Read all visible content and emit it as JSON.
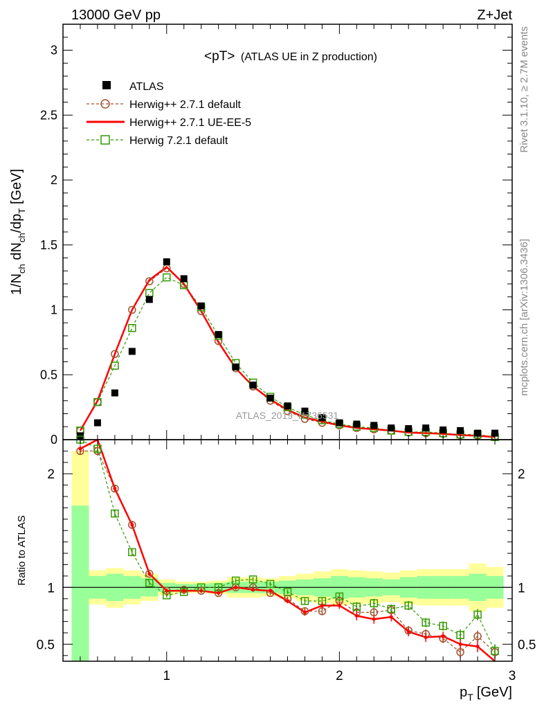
{
  "header": {
    "energy_label": "13000 GeV pp",
    "process_label": "Z+Jet"
  },
  "side_labels": {
    "rivet": "Rivet 3.1.10, ≥ 2.7M events",
    "mcplots": "mcplots.cern.ch [arXiv:1306.3436]"
  },
  "colors": {
    "atlas": "#000000",
    "herwig_default": "#a0522d",
    "herwig_ueee5": "#ff0000",
    "herwig7": "#339900",
    "band_yellow": "#ffff99",
    "band_green": "#99ff99"
  },
  "chart_data": [
    {
      "type": "scatter",
      "title": "<pT>",
      "subtitle": "(ATLAS UE in Z production)",
      "analysis_tag": "ATLAS_2019_I1736531",
      "xlabel_main": "p",
      "xlabel_sub": "T",
      "xlabel_unit": "[GeV]",
      "ylabel": "1/N_ch dN_ch/dp_T [GeV]",
      "xlim": [
        0.4,
        3.0
      ],
      "ylim": [
        0,
        3.2
      ],
      "yticks": [
        0,
        0.5,
        1,
        1.5,
        2,
        2.5,
        3
      ],
      "ytick_labels": [
        "0",
        "0.5",
        "1",
        "1.5",
        "2",
        "2.5",
        "3"
      ],
      "x": [
        0.5,
        0.6,
        0.7,
        0.8,
        0.9,
        1.0,
        1.1,
        1.2,
        1.3,
        1.4,
        1.5,
        1.6,
        1.7,
        1.8,
        1.9,
        2.0,
        2.1,
        2.2,
        2.3,
        2.4,
        2.5,
        2.6,
        2.7,
        2.8,
        2.9
      ],
      "legend": [
        {
          "label": "ATLAS",
          "style": "data"
        },
        {
          "label": "Herwig++ 2.7.1 default",
          "style": "circle-dashed"
        },
        {
          "label": "Herwig++ 2.7.1 UE-EE-5",
          "style": "solid"
        },
        {
          "label": "Herwig 7.2.1 default",
          "style": "square-dashed"
        }
      ],
      "series": [
        {
          "name": "ATLAS",
          "values": [
            0.03,
            0.13,
            0.36,
            0.68,
            1.08,
            1.37,
            1.24,
            1.03,
            0.81,
            0.56,
            0.42,
            0.32,
            0.26,
            0.22,
            0.17,
            0.13,
            0.12,
            0.11,
            0.09,
            0.085,
            0.09,
            0.075,
            0.07,
            0.05,
            0.05
          ]
        },
        {
          "name": "Herwig++ 2.7.1 default",
          "values": [
            0.07,
            0.29,
            0.66,
            1.0,
            1.22,
            1.32,
            1.2,
            0.99,
            0.76,
            0.55,
            0.41,
            0.3,
            0.22,
            0.16,
            0.13,
            0.11,
            0.09,
            0.08,
            0.07,
            0.055,
            0.05,
            0.045,
            0.035,
            0.03,
            0.025
          ]
        },
        {
          "name": "Herwig++ 2.7.1 UE-EE-5",
          "values": [
            0.07,
            0.3,
            0.66,
            1.0,
            1.23,
            1.33,
            1.2,
            0.99,
            0.75,
            0.55,
            0.41,
            0.31,
            0.23,
            0.17,
            0.14,
            0.11,
            0.09,
            0.08,
            0.07,
            0.055,
            0.05,
            0.045,
            0.035,
            0.03,
            0.02
          ]
        },
        {
          "name": "Herwig 7.2.1 default",
          "values": [
            0.07,
            0.29,
            0.57,
            0.86,
            1.13,
            1.25,
            1.19,
            1.02,
            0.8,
            0.59,
            0.44,
            0.33,
            0.25,
            0.19,
            0.15,
            0.12,
            0.1,
            0.09,
            0.07,
            0.06,
            0.06,
            0.05,
            0.04,
            0.04,
            0.02
          ]
        }
      ]
    },
    {
      "type": "line",
      "ylabel": "Ratio to ATLAS",
      "xlim": [
        0.4,
        3.0
      ],
      "ylim": [
        0.35,
        2.3
      ],
      "yticks": [
        0.5,
        1,
        2
      ],
      "ytick_labels": [
        "0.5",
        "1",
        "2"
      ],
      "xticks": [
        1,
        2,
        3
      ],
      "xtick_labels": [
        "1",
        "2",
        "3"
      ],
      "x": [
        0.5,
        0.6,
        0.7,
        0.8,
        0.9,
        1.0,
        1.1,
        1.2,
        1.3,
        1.4,
        1.5,
        1.6,
        1.7,
        1.8,
        1.9,
        2.0,
        2.1,
        2.2,
        2.3,
        2.4,
        2.5,
        2.6,
        2.7,
        2.8,
        2.9
      ],
      "band_yellow": [
        [
          0.35,
          2.2
        ],
        [
          0.85,
          1.15
        ],
        [
          0.82,
          1.17
        ],
        [
          0.85,
          1.15
        ],
        [
          0.88,
          1.12
        ],
        [
          0.93,
          1.07
        ],
        [
          0.95,
          1.05
        ],
        [
          0.95,
          1.05
        ],
        [
          0.94,
          1.06
        ],
        [
          0.91,
          1.09
        ],
        [
          0.91,
          1.09
        ],
        [
          0.92,
          1.08
        ],
        [
          0.9,
          1.1
        ],
        [
          0.88,
          1.12
        ],
        [
          0.86,
          1.14
        ],
        [
          0.84,
          1.16
        ],
        [
          0.85,
          1.15
        ],
        [
          0.86,
          1.14
        ],
        [
          0.87,
          1.13
        ],
        [
          0.85,
          1.15
        ],
        [
          0.84,
          1.16
        ],
        [
          0.84,
          1.16
        ],
        [
          0.84,
          1.16
        ],
        [
          0.79,
          1.21
        ],
        [
          0.82,
          1.18
        ]
      ],
      "band_green": [
        [
          0.35,
          1.72
        ],
        [
          0.9,
          1.1
        ],
        [
          0.88,
          1.12
        ],
        [
          0.9,
          1.1
        ],
        [
          0.92,
          1.08
        ],
        [
          0.96,
          1.04
        ],
        [
          0.97,
          1.03
        ],
        [
          0.97,
          1.03
        ],
        [
          0.96,
          1.04
        ],
        [
          0.95,
          1.05
        ],
        [
          0.95,
          1.05
        ],
        [
          0.95,
          1.05
        ],
        [
          0.94,
          1.06
        ],
        [
          0.93,
          1.07
        ],
        [
          0.92,
          1.08
        ],
        [
          0.9,
          1.1
        ],
        [
          0.91,
          1.09
        ],
        [
          0.92,
          1.08
        ],
        [
          0.93,
          1.07
        ],
        [
          0.91,
          1.09
        ],
        [
          0.9,
          1.1
        ],
        [
          0.9,
          1.1
        ],
        [
          0.9,
          1.1
        ],
        [
          0.88,
          1.12
        ],
        [
          0.9,
          1.1
        ]
      ],
      "series": [
        {
          "name": "Herwig++ 2.7.1 default",
          "values": [
            2.2,
            2.2,
            1.87,
            1.55,
            1.12,
            0.97,
            0.98,
            0.97,
            0.95,
            1.0,
            1.0,
            0.95,
            0.9,
            0.79,
            0.79,
            0.88,
            0.78,
            0.78,
            0.8,
            0.62,
            0.59,
            0.55,
            0.43,
            0.57,
            0.43
          ]
        },
        {
          "name": "Herwig++ 2.7.1 UE-EE-5",
          "values": [
            2.22,
            2.32,
            1.87,
            1.55,
            1.12,
            0.97,
            0.97,
            0.97,
            0.95,
            1.0,
            0.98,
            0.97,
            0.88,
            0.78,
            0.84,
            0.84,
            0.75,
            0.72,
            0.74,
            0.61,
            0.56,
            0.57,
            0.5,
            0.48,
            0.29
          ]
        },
        {
          "name": "Herwig 7.2.1 default",
          "values": [
            2.3,
            2.22,
            1.65,
            1.31,
            1.04,
            0.93,
            0.96,
            1.0,
            1.0,
            1.06,
            1.07,
            1.03,
            0.96,
            0.88,
            0.88,
            0.92,
            0.83,
            0.86,
            0.81,
            0.84,
            0.69,
            0.66,
            0.58,
            0.76,
            0.44
          ]
        }
      ]
    }
  ]
}
